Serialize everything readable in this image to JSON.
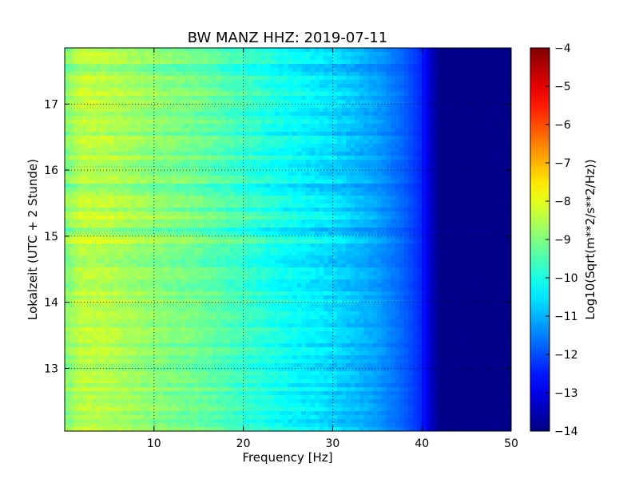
{
  "chart_data": {
    "type": "heatmap",
    "title": "BW MANZ HHZ: 2019-07-11",
    "xlabel": "Frequency [Hz]",
    "ylabel": "Lokalzeit (UTC + 2 Stunde)",
    "colorbar_label": "Log10(Sqrt(m**2/s**2/Hz))",
    "xlim": [
      0,
      50
    ],
    "ylim": [
      17.85,
      12.05
    ],
    "x_ticks": [
      10,
      20,
      30,
      40,
      50
    ],
    "y_ticks": [
      13,
      14,
      15,
      16,
      17
    ],
    "colorbar_range": [
      -14,
      -4
    ],
    "colorbar_ticks": [
      -4,
      -5,
      -6,
      -7,
      -8,
      -9,
      -10,
      -11,
      -12,
      -13,
      -14
    ],
    "colormap": "jet",
    "grid": true,
    "psd_profile": {
      "frequency_hz": [
        0,
        2,
        5,
        10,
        15,
        20,
        25,
        30,
        35,
        38,
        40,
        41,
        42,
        50
      ],
      "log10_psd": [
        -9.0,
        -8.4,
        -8.5,
        -8.9,
        -9.2,
        -9.7,
        -10.2,
        -10.6,
        -11.2,
        -11.8,
        -12.4,
        -13.3,
        -13.9,
        -13.9
      ]
    },
    "time_features": [
      {
        "hour": 13.55,
        "delta": 0.35
      },
      {
        "hour": 13.85,
        "delta": 0.3
      },
      {
        "hour": 14.62,
        "delta": -0.3
      },
      {
        "hour": 14.95,
        "delta": 0.4
      },
      {
        "hour": 15.12,
        "delta": -0.3
      },
      {
        "hour": 15.28,
        "delta": 0.6
      },
      {
        "hour": 15.75,
        "delta": -0.3
      },
      {
        "hour": 16.55,
        "delta": -0.35
      },
      {
        "hour": 16.85,
        "delta": -0.3
      },
      {
        "hour": 17.18,
        "delta": 0.45
      },
      {
        "hour": 17.55,
        "delta": -0.3
      }
    ]
  }
}
